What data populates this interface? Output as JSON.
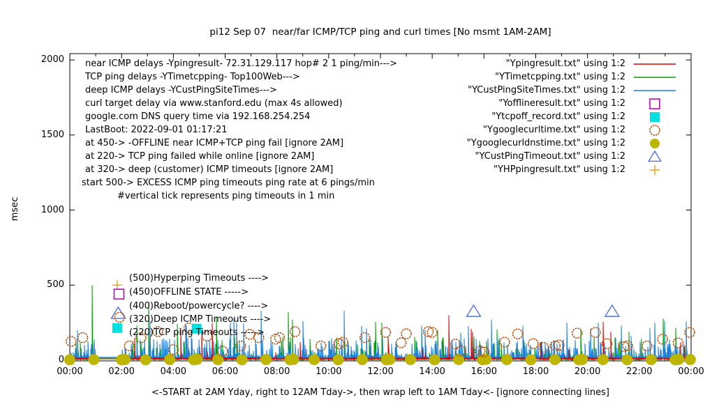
{
  "title": "pi12 Sep 07  near/far ICMP/TCP ping and curl times [No msmt 1AM-2AM]",
  "ylabel": "msec",
  "xcaption": "<-START at 2AM Yday, right to 12AM Tday->, then wrap left to 1AM Tday<- [ignore connecting lines]",
  "annotations": [
    {
      "text": "near ICMP delays -Ypingresult- 72.31.129.117 hop# 2 1 ping/min--->",
      "indent": 0
    },
    {
      "text": "TCP ping delays -YTimetcpping- Top100Web--->",
      "indent": 0
    },
    {
      "text": "deep ICMP delays -YCustPingSiteTimes--->",
      "indent": 0
    },
    {
      "text": "curl target delay via www.stanford.edu (max 4s allowed)",
      "indent": 0
    },
    {
      "text": "google.com DNS query time via 192.168.254.254",
      "indent": 0
    },
    {
      "text": "LastBoot: 2022-09-01 01:17:21",
      "indent": 0
    },
    {
      "text": "at 450-> -OFFLINE near ICMP+TCP ping fail [ignore 2AM]",
      "indent": 0
    },
    {
      "text": "at 220-> TCP ping failed while online [ignore 2AM]",
      "indent": 0
    },
    {
      "text": "at 320-> deep (customer) ICMP timeouts [ignore 2AM]",
      "indent": 0
    },
    {
      "text": "start 500-> EXCESS ICMP ping timeouts ping rate at 6 pings/min",
      "indent": -5
    },
    {
      "text": "#vertical tick represents ping timeouts in 1 min",
      "indent": 46
    }
  ],
  "legend": [
    {
      "label": "\"Ypingresult.txt\" using 1:2",
      "glyph": "line",
      "color": "#e00000"
    },
    {
      "label": "\"YTimetcpping.txt\" using 1:2",
      "glyph": "line",
      "color": "#00a000"
    },
    {
      "label": "\"YCustPingSiteTimes.txt\" using 1:2",
      "glyph": "line",
      "color": "#1c7fd8"
    },
    {
      "label": "\"Yofflineresult.txt\" using 1:2",
      "glyph": "sq_open",
      "color": "#c800c8"
    },
    {
      "label": "\"Ytcpoff_record.txt\" using 1:2",
      "glyph": "sq_fill",
      "color": "#00e0e0"
    },
    {
      "label": "\"Ygooglecurltime.txt\" using 1:2",
      "glyph": "circ_open",
      "color": "#b4500f"
    },
    {
      "label": "\"Ygooglecurldnstime.txt\" using 1:2",
      "glyph": "circ_fill",
      "color": "#bdb500"
    },
    {
      "label": "\"YCustPingTimeout.txt\" using 1:2",
      "glyph": "tri_open",
      "color": "#4169e1"
    },
    {
      "label": "\"YHPpingresult.txt\" using 1:2",
      "glyph": "plus",
      "color": "#f5a020"
    }
  ],
  "mid_labels": [
    {
      "text": "(500)Hyperping Timeouts ---->"
    },
    {
      "text": "(450)OFFLINE STATE ----->"
    },
    {
      "text": "(400)Reboot/powercycle? ---->"
    },
    {
      "text": "(320)Deep ICMP Timeouts ---->"
    },
    {
      "text": "(220)TCP ping Timeouts ----->"
    }
  ],
  "chart_data": {
    "type": "line",
    "title": "pi12 Sep 07  near/far ICMP/TCP ping and curl times [No msmt 1AM-2AM]",
    "xlabel": "<-START at 2AM Yday, right to 12AM Tday->, then wrap left to 1AM Tday<- [ignore connecting lines]",
    "ylabel": "msec",
    "ylim": [
      0,
      2000
    ],
    "xlim_hours": [
      0,
      24
    ],
    "x_tick_labels": [
      "00:00",
      "02:00",
      "04:00",
      "06:00",
      "08:00",
      "10:00",
      "12:00",
      "14:00",
      "16:00",
      "18:00",
      "20:00",
      "22:00",
      "00:00"
    ],
    "y_tick_values": [
      0,
      500,
      1000,
      1500,
      2000
    ],
    "grid": false,
    "legend_position": "top-right-inside",
    "measurement_gap_hours": [
      1,
      2
    ],
    "series": [
      {
        "name": "YTimetcpping (TCP ping delays, Top100Web)",
        "color": "#00a000",
        "style": "impulse-noise",
        "noise": {
          "floor": 4,
          "base": 8,
          "exp": 16,
          "p_med": 0.09,
          "med": [
            50,
            160
          ],
          "p_hi": 0.006,
          "hi": [
            160,
            380
          ]
        },
        "gap_value": 14,
        "notable_spikes": [
          [
            0.85,
            500
          ],
          [
            2.6,
            230
          ],
          [
            3.05,
            390
          ],
          [
            5.65,
            290
          ],
          [
            8.45,
            320
          ],
          [
            8.6,
            270
          ],
          [
            11.8,
            255
          ],
          [
            12.05,
            250
          ],
          [
            14.2,
            200
          ],
          [
            16.5,
            205
          ],
          [
            19.75,
            210
          ],
          [
            20.6,
            200
          ],
          [
            21.6,
            190
          ],
          [
            23.4,
            215
          ]
        ]
      },
      {
        "name": "YCustPingSiteTimes (deep ICMP delays)",
        "color": "#1c7fd8",
        "style": "impulse-noise",
        "noise": {
          "floor": 8,
          "base": 14,
          "exp": 30,
          "p_med": 0.22,
          "med": [
            60,
            150
          ],
          "p_hi": 0.015,
          "hi": [
            150,
            280
          ]
        },
        "gap_value": 20,
        "notable_spikes": [
          [
            0.3,
            200
          ],
          [
            3.1,
            260
          ],
          [
            4.5,
            230
          ],
          [
            6.2,
            250
          ],
          [
            7.4,
            330
          ],
          [
            9.0,
            260
          ],
          [
            10.6,
            330
          ],
          [
            13.6,
            230
          ],
          [
            16.3,
            270
          ],
          [
            17.5,
            230
          ],
          [
            19.2,
            250
          ],
          [
            21.3,
            230
          ],
          [
            22.6,
            250
          ],
          [
            23.8,
            260
          ]
        ]
      },
      {
        "name": "Ypingresult (near ICMP delays 72.31.129.117)",
        "color": "#e00000",
        "style": "impulse-noise",
        "noise": {
          "floor": 6,
          "base": 9,
          "exp": 3,
          "p_med": 0.012,
          "med": [
            30,
            80
          ],
          "p_hi": 0.003,
          "hi": [
            80,
            220
          ]
        },
        "gap_value": 9,
        "notable_spikes": [
          [
            2.5,
            150
          ],
          [
            4.3,
            215
          ],
          [
            5.1,
            170
          ],
          [
            5.5,
            250
          ],
          [
            8.9,
            120
          ],
          [
            12.3,
            150
          ],
          [
            14.65,
            300
          ],
          [
            15.5,
            210
          ],
          [
            15.55,
            190
          ],
          [
            18.2,
            120
          ],
          [
            20.6,
            255
          ],
          [
            20.9,
            190
          ],
          [
            23.6,
            120
          ]
        ]
      }
    ],
    "point_series": [
      {
        "name": "Ygooglecurldnstime (google DNS query time)",
        "marker": "circ_fill",
        "color": "#bdb500",
        "r": 8,
        "points": [
          [
            0,
            3
          ],
          [
            0.93,
            4
          ],
          [
            2.0,
            3
          ],
          [
            2.13,
            5
          ],
          [
            2.93,
            3
          ],
          [
            3.86,
            4
          ],
          [
            4.79,
            3
          ],
          [
            4.92,
            6
          ],
          [
            5.72,
            4
          ],
          [
            6.65,
            3
          ],
          [
            7.58,
            4
          ],
          [
            8.51,
            3
          ],
          [
            8.64,
            5
          ],
          [
            9.44,
            4
          ],
          [
            10.37,
            3
          ],
          [
            11.3,
            4
          ],
          [
            12.23,
            3
          ],
          [
            12.36,
            5
          ],
          [
            13.16,
            4
          ],
          [
            14.09,
            3
          ],
          [
            15.02,
            4
          ],
          [
            15.95,
            3
          ],
          [
            16.08,
            6
          ],
          [
            16.88,
            4
          ],
          [
            17.81,
            3
          ],
          [
            18.74,
            4
          ],
          [
            19.67,
            3
          ],
          [
            19.8,
            5
          ],
          [
            20.6,
            4
          ],
          [
            21.53,
            3
          ],
          [
            22.46,
            4
          ],
          [
            23.39,
            3
          ],
          [
            23.52,
            5
          ],
          [
            23.97,
            4
          ]
        ]
      },
      {
        "name": "Ygooglecurltime (curl www.stanford.edu delay)",
        "marker": "circ_open",
        "color": "#b4500f",
        "r": 7,
        "points": [
          [
            0.05,
            125
          ],
          [
            0.5,
            150
          ],
          [
            2.3,
            95
          ],
          [
            2.75,
            150
          ],
          [
            3.4,
            190
          ],
          [
            4.0,
            70
          ],
          [
            4.6,
            215
          ],
          [
            5.3,
            160
          ],
          [
            5.9,
            60
          ],
          [
            6.6,
            95
          ],
          [
            6.95,
            172
          ],
          [
            7.3,
            150
          ],
          [
            7.95,
            140
          ],
          [
            8.1,
            150
          ],
          [
            8.7,
            190
          ],
          [
            9.7,
            95
          ],
          [
            10.4,
            110
          ],
          [
            10.55,
            120
          ],
          [
            11.4,
            150
          ],
          [
            12.2,
            185
          ],
          [
            12.8,
            116
          ],
          [
            13.0,
            176
          ],
          [
            13.85,
            190
          ],
          [
            14.0,
            185
          ],
          [
            14.9,
            107
          ],
          [
            15.1,
            60
          ],
          [
            15.85,
            60
          ],
          [
            16.0,
            55
          ],
          [
            16.8,
            120
          ],
          [
            17.3,
            175
          ],
          [
            17.9,
            110
          ],
          [
            18.3,
            85
          ],
          [
            18.75,
            95
          ],
          [
            18.9,
            100
          ],
          [
            19.6,
            180
          ],
          [
            20.3,
            185
          ],
          [
            20.75,
            110
          ],
          [
            21.4,
            90
          ],
          [
            21.55,
            95
          ],
          [
            22.3,
            95
          ],
          [
            22.9,
            140
          ],
          [
            23.5,
            115
          ],
          [
            23.95,
            185
          ]
        ]
      },
      {
        "name": "YCustPingTimeout (deep ICMP timeouts at 320)",
        "marker": "tri_open",
        "color": "#4169e1",
        "r": 9,
        "points": [
          [
            15.6,
            325
          ],
          [
            20.95,
            325
          ]
        ]
      },
      {
        "name": "Ytcpoff_record (TCP ping failed while online at 220)",
        "marker": "sq_fill",
        "color": "#00e0e0",
        "r": 7,
        "points": [
          [
            4.9,
            210
          ]
        ]
      }
    ],
    "label_markers": [
      {
        "marker": "plus",
        "color": "#f5a020",
        "t": 1.83,
        "v": 500
      },
      {
        "marker": "sq_open",
        "color": "#c800c8",
        "t": 1.9,
        "v": 440
      },
      {
        "marker": "tri_open",
        "color": "#4169e1",
        "t": 1.87,
        "v": 312
      },
      {
        "marker": "circ_open",
        "color": "#b4500f",
        "t": 1.92,
        "v": 286
      },
      {
        "marker": "sq_fill",
        "color": "#00e0e0",
        "t": 1.83,
        "v": 214
      }
    ],
    "noise_seed": 42
  }
}
